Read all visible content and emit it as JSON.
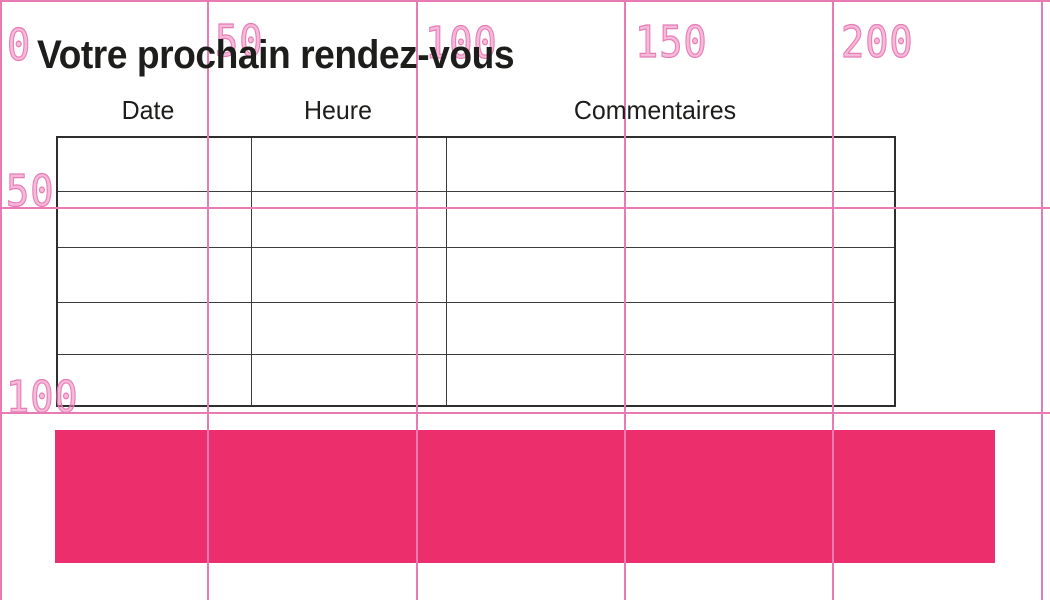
{
  "title": "Votre prochain rendez-vous",
  "table": {
    "headers": [
      "Date",
      "Heure",
      "Commentaires"
    ],
    "rows": [
      [
        "",
        "",
        ""
      ],
      [
        "",
        "",
        ""
      ],
      [
        "",
        "",
        ""
      ],
      [
        "",
        "",
        ""
      ],
      [
        "",
        "",
        ""
      ]
    ]
  },
  "ruler": {
    "top_labels": [
      "0",
      "50",
      "100",
      "150",
      "200"
    ],
    "left_labels": [
      "50",
      "100"
    ]
  },
  "colors": {
    "grid_pink": "#e87bb4",
    "accent": "#ed2e6c",
    "ink": "#1d1d1b",
    "table_border": "#2e2e2c",
    "table_border_inner": "#3c3c3a"
  }
}
